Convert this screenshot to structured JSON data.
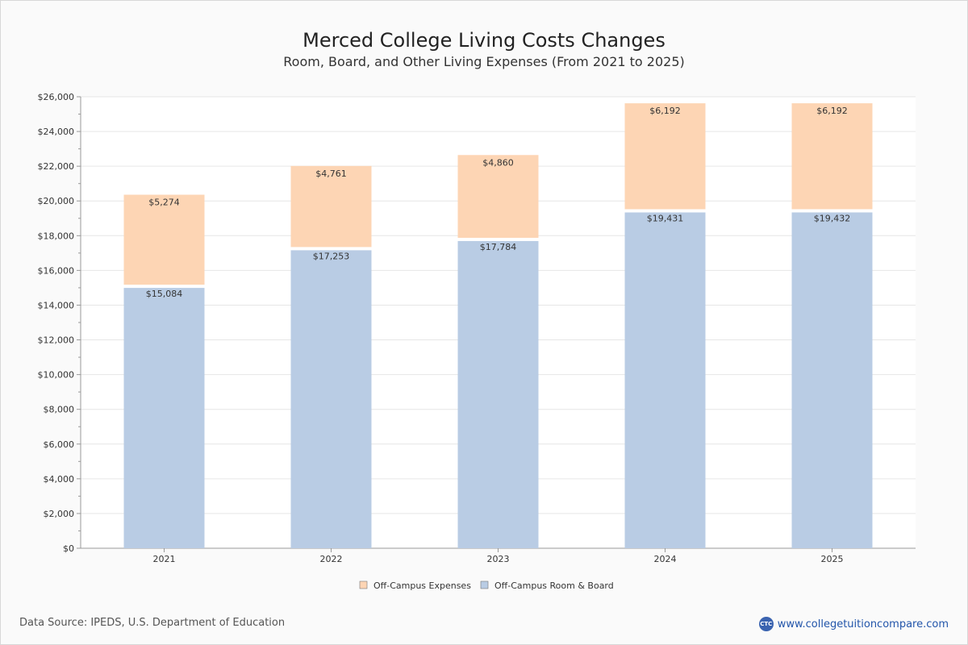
{
  "chart_title": "Merced College Living Costs Changes",
  "chart_subtitle": "Room, Board, and Other Living Expenses (From 2021 to 2025)",
  "footer": {
    "source": "Data Source: IPEDS, U.S. Department of Education",
    "site": "www.collegetuitioncompare.com",
    "logo_text": "CTC"
  },
  "colors": {
    "room_board": "#b9cce4",
    "expenses": "#fdd5b4",
    "grid": "#e6e6e6",
    "axis": "#999999"
  },
  "chart_data": {
    "type": "bar",
    "stacked": true,
    "categories": [
      "2021",
      "2022",
      "2023",
      "2024",
      "2025"
    ],
    "series": [
      {
        "name": "Off-Campus Room & Board",
        "values": [
          15084,
          17253,
          17784,
          19431,
          19432
        ],
        "labels": [
          "$15,084",
          "$17,253",
          "$17,784",
          "$19,431",
          "$19,432"
        ]
      },
      {
        "name": "Off-Campus Expenses",
        "values": [
          5274,
          4761,
          4860,
          6192,
          6192
        ],
        "labels": [
          "$5,274",
          "$4,761",
          "$4,860",
          "$6,192",
          "$6,192"
        ]
      }
    ],
    "legend_order": [
      "Off-Campus Expenses",
      "Off-Campus Room & Board"
    ],
    "ylim": [
      0,
      26000
    ],
    "yticks": [
      0,
      2000,
      4000,
      6000,
      8000,
      10000,
      12000,
      14000,
      16000,
      18000,
      20000,
      22000,
      24000,
      26000
    ],
    "ytick_labels": [
      "$0",
      "$2,000",
      "$4,000",
      "$6,000",
      "$8,000",
      "$10,000",
      "$12,000",
      "$14,000",
      "$16,000",
      "$18,000",
      "$20,000",
      "$22,000",
      "$24,000",
      "$26,000"
    ],
    "grid": true,
    "legend_position": "bottom-center"
  }
}
